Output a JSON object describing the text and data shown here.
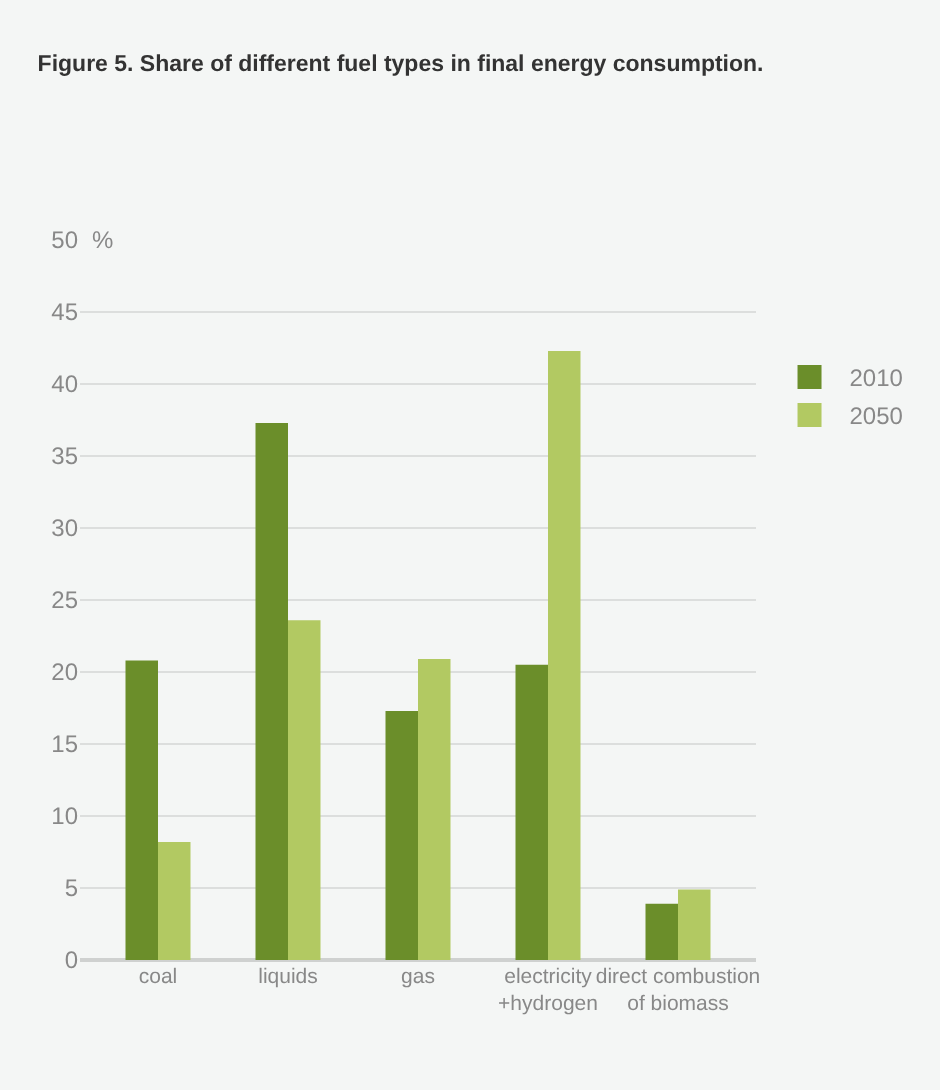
{
  "chart_data": {
    "type": "bar",
    "title": "Figure 5. Share of different fuel types in final energy consumption.",
    "ylabel": "%",
    "categories": [
      "coal",
      "liquids",
      "gas",
      "electricity\n+hydrogen",
      "direct combustion\nof biomass"
    ],
    "series": [
      {
        "name": "2010",
        "color": "#6b8e2a",
        "values": [
          20.8,
          37.3,
          17.3,
          20.5,
          3.9
        ]
      },
      {
        "name": "2050",
        "color": "#b2c962",
        "values": [
          8.2,
          23.6,
          20.9,
          42.3,
          4.9
        ]
      }
    ],
    "ylim": [
      0,
      50
    ],
    "yticks": [
      0,
      5,
      10,
      15,
      20,
      25,
      30,
      35,
      40,
      45,
      50
    ],
    "grid": "y",
    "legend": "right"
  }
}
